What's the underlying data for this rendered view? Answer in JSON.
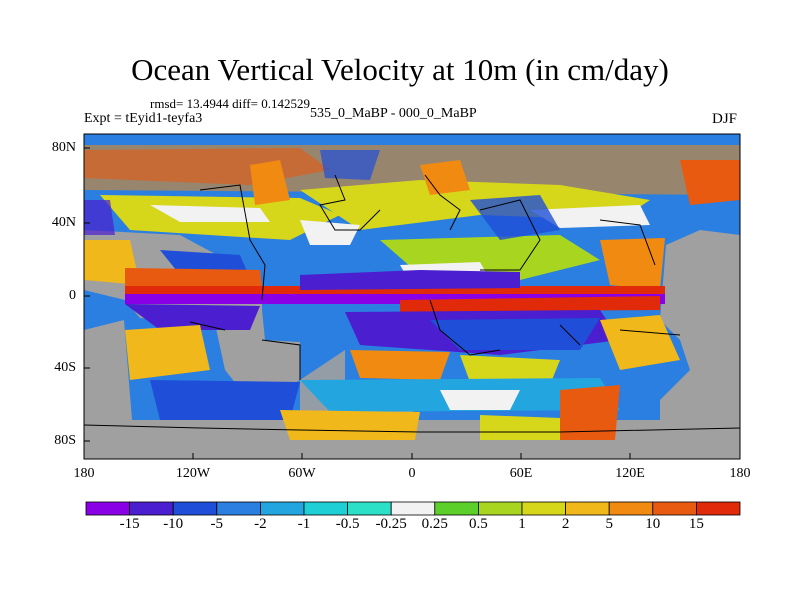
{
  "title": "Ocean Vertical Velocity at 10m (in cm/day)",
  "stats": "rmsd= 13.4944 diff= 0.142529",
  "experiment": "Expt = tEyid1-teyfa3",
  "difference": "535_0_MaBP - 000_0_MaBP",
  "season": "DJF",
  "y_ticks": [
    "80N",
    "40N",
    "0",
    "40S",
    "80S"
  ],
  "x_ticks": [
    "180",
    "120W",
    "60W",
    "0",
    "60E",
    "120E",
    "180"
  ],
  "colorbar": {
    "labels": [
      "-15",
      "-10",
      "-5",
      "-2",
      "-1",
      "-0.5",
      "-0.25",
      "0.25",
      "0.5",
      "1",
      "2",
      "5",
      "10",
      "15"
    ],
    "colors": [
      "#8a00e6",
      "#4b1ecf",
      "#1f4fd8",
      "#2a7fe0",
      "#23a6e0",
      "#1fcfd6",
      "#2ce0c8",
      "#f2f2f2",
      "#5ccf2a",
      "#a8d620",
      "#d6d61a",
      "#f0b81a",
      "#f08a10",
      "#e85a10",
      "#e02a0a"
    ]
  },
  "map": {
    "land_color": "#a0a0a0",
    "palette_index_map": "ocean-field"
  }
}
